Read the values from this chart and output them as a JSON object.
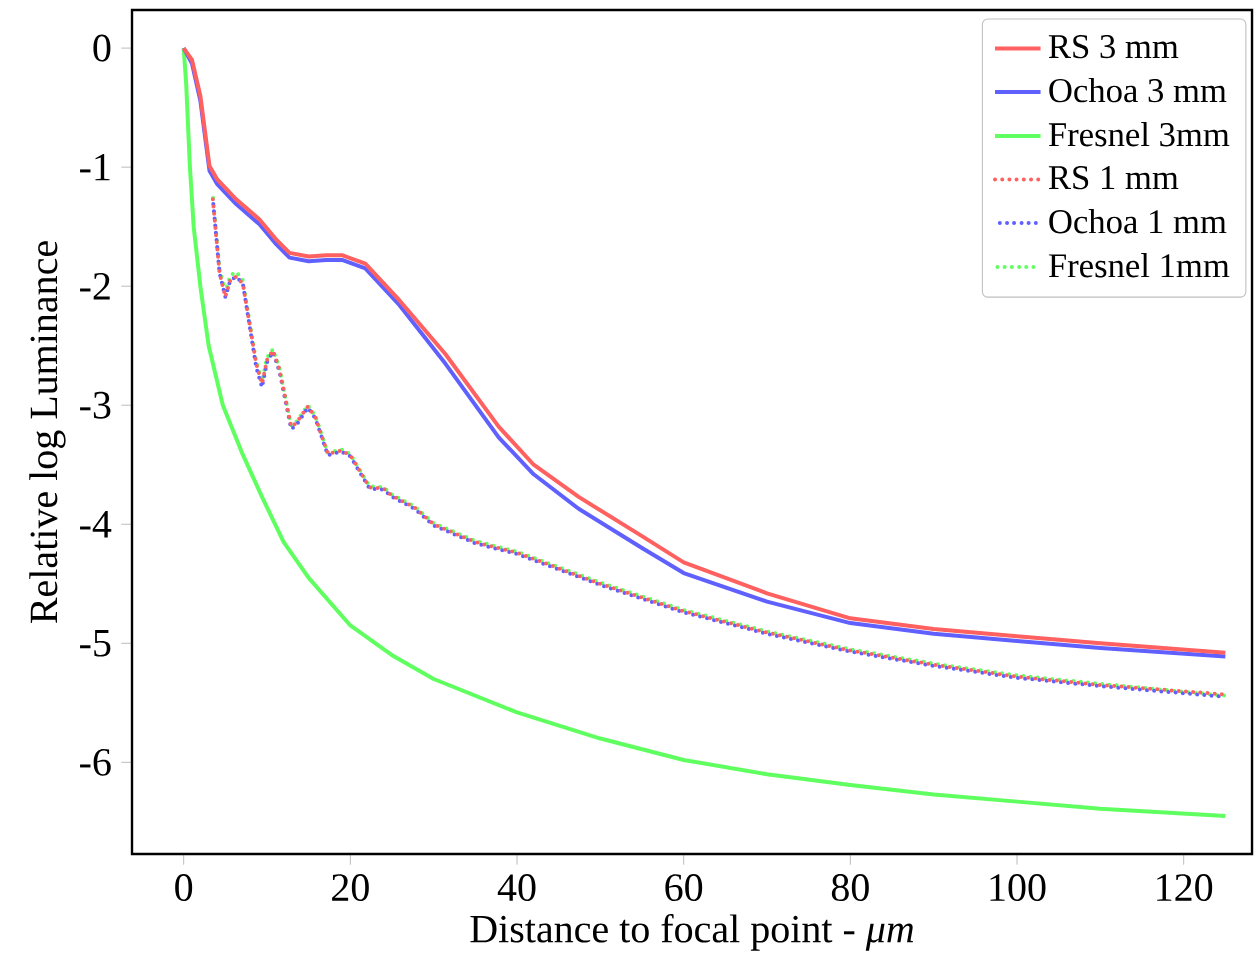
{
  "chart_data": {
    "type": "line",
    "xlabel": "Distance to focal point - *μm*",
    "ylabel": "Relative log Luminance",
    "xlim": [
      -6.2,
      128.2
    ],
    "ylim": [
      -6.77,
      0.32
    ],
    "xticks": [
      0,
      20,
      40,
      60,
      80,
      100,
      120
    ],
    "yticks": [
      0,
      -1,
      -2,
      -3,
      -4,
      -5,
      -6
    ],
    "legend": "top right",
    "grid": false,
    "series": [
      {
        "name": "RS 3 mm",
        "color": "#ff6060",
        "line_style": "solid",
        "x": [
          0,
          1,
          2,
          3.1,
          4,
          6.3,
          9.1,
          11,
          12.7,
          15,
          17.1,
          19,
          21.8,
          25.9,
          31.4,
          37.8,
          42,
          47.4,
          55,
          60,
          70,
          80,
          90,
          100,
          110,
          125
        ],
        "values": [
          0,
          -0.1,
          -0.4,
          -0.99,
          -1.1,
          -1.27,
          -1.44,
          -1.6,
          -1.72,
          -1.75,
          -1.74,
          -1.74,
          -1.81,
          -2.12,
          -2.57,
          -3.18,
          -3.5,
          -3.77,
          -4.1,
          -4.32,
          -4.58,
          -4.79,
          -4.88,
          -4.94,
          -5.0,
          -5.08
        ]
      },
      {
        "name": "Ochoa 3 mm",
        "color": "#6060ff",
        "line_style": "solid",
        "x": [
          0,
          1,
          2,
          3.1,
          4,
          6.3,
          9.1,
          11,
          12.7,
          15,
          17.1,
          19,
          21.8,
          25.9,
          31.4,
          37.8,
          42,
          47.4,
          55,
          60,
          70,
          80,
          90,
          100,
          110,
          125
        ],
        "values": [
          0,
          -0.13,
          -0.44,
          -1.03,
          -1.14,
          -1.31,
          -1.48,
          -1.64,
          -1.76,
          -1.79,
          -1.78,
          -1.78,
          -1.85,
          -2.16,
          -2.65,
          -3.27,
          -3.58,
          -3.87,
          -4.2,
          -4.41,
          -4.65,
          -4.83,
          -4.92,
          -4.98,
          -5.04,
          -5.11
        ]
      },
      {
        "name": "Fresnel 3mm",
        "color": "#60ff60",
        "line_style": "solid",
        "x": [
          0,
          0.3,
          0.75,
          1.2,
          2,
          3,
          4.7,
          7,
          9.4,
          12,
          15,
          20,
          25,
          30,
          40,
          50,
          60,
          70,
          80,
          90,
          100,
          110,
          125
        ],
        "values": [
          0,
          -0.3,
          -1,
          -1.5,
          -2,
          -2.5,
          -3,
          -3.4,
          -3.77,
          -4.15,
          -4.45,
          -4.85,
          -5.1,
          -5.3,
          -5.58,
          -5.8,
          -5.98,
          -6.1,
          -6.19,
          -6.27,
          -6.33,
          -6.39,
          -6.45
        ]
      },
      {
        "name": "RS 1 mm",
        "color": "#ff6060",
        "line_style": "dotted",
        "x": [
          3.5,
          4.3,
          5,
          5.6,
          6.3,
          7.1,
          8.7,
          9.4,
          10,
          10.7,
          11.5,
          12.9,
          13.5,
          14.9,
          15.8,
          17.3,
          18.9,
          20,
          22.3,
          24,
          25,
          27.7,
          30,
          35,
          40,
          50,
          60,
          70,
          80,
          90,
          100,
          110,
          125
        ],
        "values": [
          -1.27,
          -1.89,
          -2.09,
          -1.95,
          -1.92,
          -1.98,
          -2.65,
          -2.82,
          -2.62,
          -2.54,
          -2.7,
          -3.18,
          -3.15,
          -3.01,
          -3.1,
          -3.41,
          -3.38,
          -3.42,
          -3.69,
          -3.7,
          -3.76,
          -3.86,
          -4.0,
          -4.15,
          -4.24,
          -4.5,
          -4.73,
          -4.91,
          -5.06,
          -5.18,
          -5.28,
          -5.35,
          -5.43
        ]
      },
      {
        "name": "Ochoa 1 mm",
        "color": "#6060ff",
        "line_style": "dotted",
        "x": [
          3.5,
          4.3,
          5,
          5.6,
          6.3,
          7.1,
          8.7,
          9.4,
          10,
          10.7,
          11.5,
          12.9,
          13.5,
          14.9,
          15.8,
          17.3,
          18.9,
          20,
          22.3,
          24,
          25,
          27.7,
          30,
          35,
          40,
          50,
          60,
          70,
          80,
          90,
          100,
          110,
          125
        ],
        "values": [
          -1.27,
          -1.89,
          -2.09,
          -1.95,
          -1.92,
          -1.98,
          -2.68,
          -2.85,
          -2.64,
          -2.55,
          -2.72,
          -3.2,
          -3.17,
          -3.02,
          -3.11,
          -3.42,
          -3.39,
          -3.43,
          -3.7,
          -3.71,
          -3.77,
          -3.87,
          -4.01,
          -4.16,
          -4.25,
          -4.51,
          -4.74,
          -4.92,
          -5.07,
          -5.19,
          -5.29,
          -5.36,
          -5.45
        ]
      },
      {
        "name": "Fresnel 1mm",
        "color": "#60ff60",
        "line_style": "dotted",
        "x": [
          3.5,
          4.3,
          5,
          5.6,
          6.3,
          7.1,
          8.7,
          9.4,
          10,
          10.7,
          11.5,
          12.9,
          13.5,
          14.9,
          15.8,
          17.3,
          18.9,
          20,
          22.3,
          24,
          25,
          27.7,
          30,
          35,
          40,
          50,
          60,
          70,
          80,
          90,
          100,
          110,
          125
        ],
        "values": [
          -1.24,
          -1.85,
          -2.05,
          -1.91,
          -1.88,
          -1.95,
          -2.63,
          -2.8,
          -2.6,
          -2.53,
          -2.69,
          -3.17,
          -3.14,
          -3.0,
          -3.09,
          -3.4,
          -3.37,
          -3.41,
          -3.68,
          -3.69,
          -3.75,
          -3.85,
          -3.99,
          -4.14,
          -4.23,
          -4.49,
          -4.72,
          -4.9,
          -5.05,
          -5.17,
          -5.27,
          -5.34,
          -5.44
        ]
      }
    ]
  }
}
